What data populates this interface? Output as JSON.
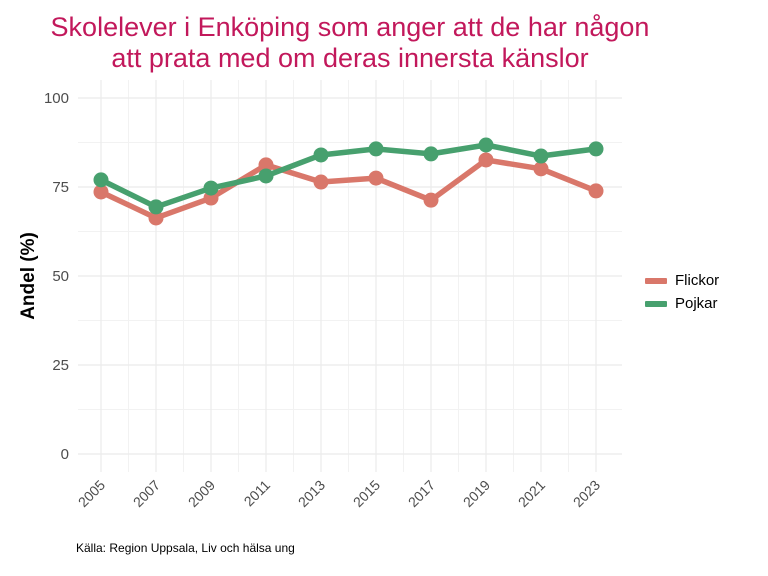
{
  "chart_data": {
    "type": "line",
    "title_lines": [
      "Skolelever i Enköping som anger att de har någon",
      "att prata med om deras innersta känslor"
    ],
    "title": "Skolelever i Enköping som anger att de har någon att prata med om deras innersta känslor",
    "xlabel": "",
    "ylabel": "Andel (%)",
    "x": [
      2005,
      2007,
      2009,
      2011,
      2013,
      2015,
      2017,
      2019,
      2021,
      2023
    ],
    "x_tick_labels": [
      "2005",
      "2007",
      "2009",
      "2011",
      "2013",
      "2015",
      "2017",
      "2019",
      "2021",
      "2023"
    ],
    "ylim": [
      0,
      100
    ],
    "y_ticks": [
      0,
      25,
      50,
      75,
      100
    ],
    "y_tick_labels": [
      "0",
      "25",
      "50",
      "75",
      "100"
    ],
    "grid": true,
    "legend_position": "right",
    "series": [
      {
        "name": "Flickor",
        "color": "#D9776A",
        "values": [
          73.6,
          66.3,
          71.9,
          81.2,
          76.4,
          77.5,
          71.3,
          82.6,
          80.1,
          73.9
        ]
      },
      {
        "name": "Pojkar",
        "color": "#47A06E",
        "values": [
          77.0,
          69.4,
          74.7,
          78.1,
          84.0,
          85.7,
          84.3,
          86.8,
          83.7,
          85.7
        ]
      }
    ],
    "caption": "Källa: Region Uppsala, Liv och hälsa ung"
  }
}
